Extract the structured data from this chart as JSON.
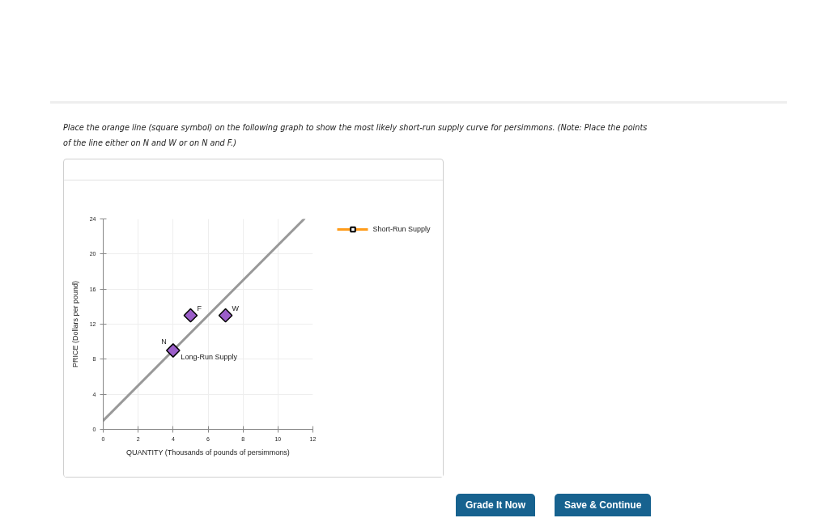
{
  "chart_data": {
    "type": "line",
    "title": "Place the orange line (square symbol) on the following graph to show the most likely short-run supply curve for persimmons. (Note: Place the points of the line either on N and W or on N and F.)",
    "xlabel": "QUANTITY (Thousands of pounds of persimmons)",
    "ylabel": "PRICE (Dollars per pound)",
    "xlim": [
      0,
      12
    ],
    "ylim": [
      0,
      24
    ],
    "xticks": [
      0,
      2,
      4,
      6,
      8,
      10,
      12
    ],
    "yticks": [
      0,
      4,
      8,
      12,
      16,
      20,
      24
    ],
    "grid": true,
    "legend": "right",
    "series": [
      {
        "name": "Long-Run Supply",
        "color": "#999999",
        "x": [
          0,
          11.5
        ],
        "values": [
          1,
          24
        ]
      },
      {
        "type": "scatter",
        "color": "#9b5ec9",
        "x": [
          4,
          5,
          7
        ],
        "values": [
          9,
          13,
          13
        ],
        "marker": "diamond"
      },
      {
        "name": "Short-Run Supply",
        "color": "#ff9c1a",
        "marker": "square"
      }
    ],
    "annotations": [
      {
        "text": "N",
        "x": 4,
        "y": 9
      },
      {
        "text": "F",
        "x": 5,
        "y": 13
      },
      {
        "text": "W",
        "x": 7,
        "y": 13
      },
      "Grade It Now",
      "Save & Continue"
    ]
  }
}
